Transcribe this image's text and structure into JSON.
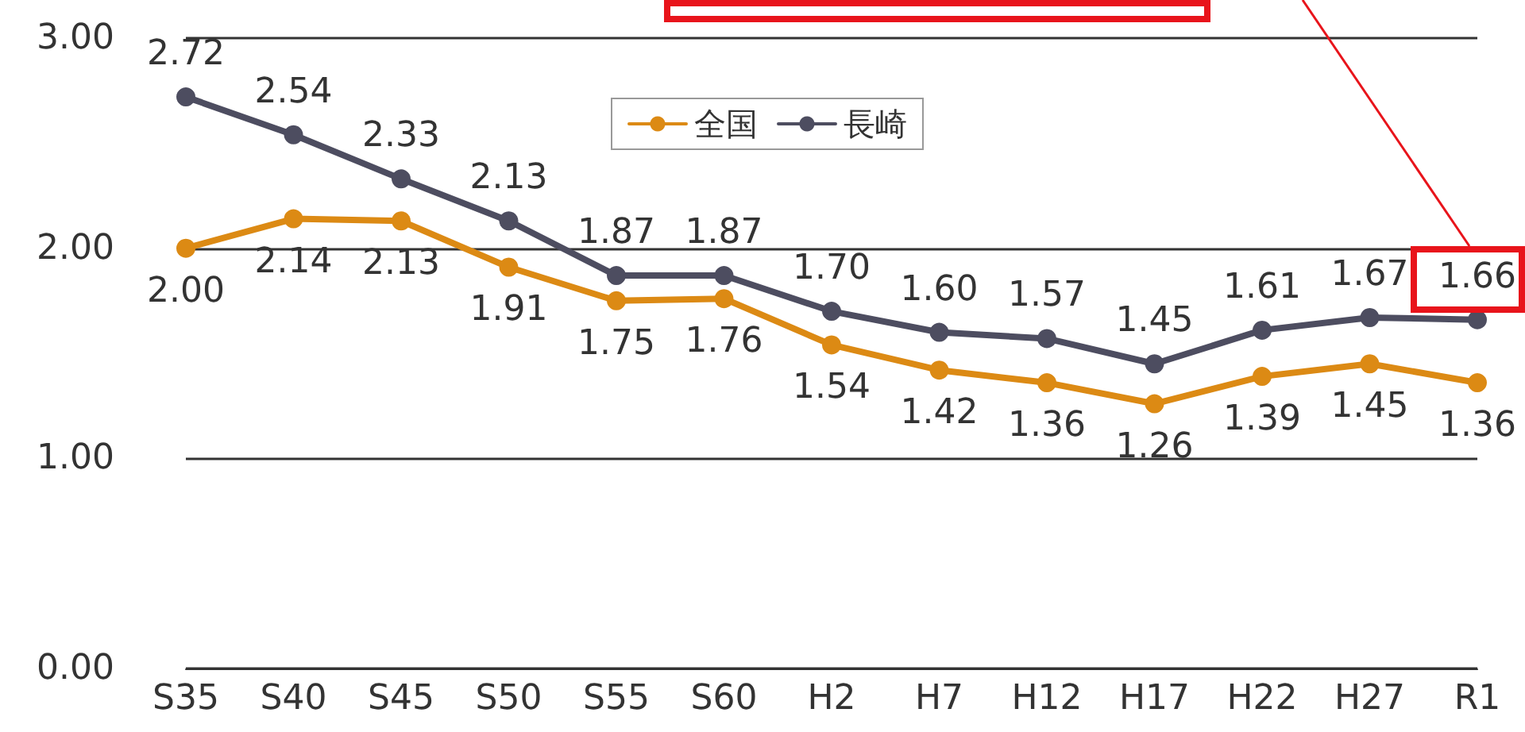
{
  "chart_data": {
    "type": "line",
    "categories": [
      "S35",
      "S40",
      "S45",
      "S50",
      "S55",
      "S60",
      "H2",
      "H7",
      "H12",
      "H17",
      "H22",
      "H27",
      "R1"
    ],
    "series": [
      {
        "name": "全国",
        "color": "#dc8a14",
        "values": [
          2.0,
          2.14,
          2.13,
          1.91,
          1.75,
          1.76,
          1.54,
          1.42,
          1.36,
          1.26,
          1.39,
          1.45,
          1.36
        ],
        "value_labels": [
          "2.00",
          "2.14",
          "2.13",
          "1.91",
          "1.75",
          "1.76",
          "1.54",
          "1.42",
          "1.36",
          "1.26",
          "1.39",
          "1.45",
          "1.36"
        ]
      },
      {
        "name": "長崎",
        "color": "#4d4d60",
        "values": [
          2.72,
          2.54,
          2.33,
          2.13,
          1.87,
          1.87,
          1.7,
          1.6,
          1.57,
          1.45,
          1.61,
          1.67,
          1.66
        ],
        "value_labels": [
          "2.72",
          "2.54",
          "2.33",
          "2.13",
          "1.87",
          "1.87",
          "1.70",
          "1.60",
          "1.57",
          "1.45",
          "1.61",
          "1.67",
          "1.66"
        ]
      }
    ],
    "ylim": [
      0,
      3
    ],
    "yticks": [
      {
        "value": 0,
        "label": "0.00"
      },
      {
        "value": 1,
        "label": "1.00"
      },
      {
        "value": 2,
        "label": "2.00"
      },
      {
        "value": 3,
        "label": "3.00"
      }
    ],
    "grid": "y",
    "legend": "top",
    "marker": "circle",
    "line_style": "solid"
  }
}
